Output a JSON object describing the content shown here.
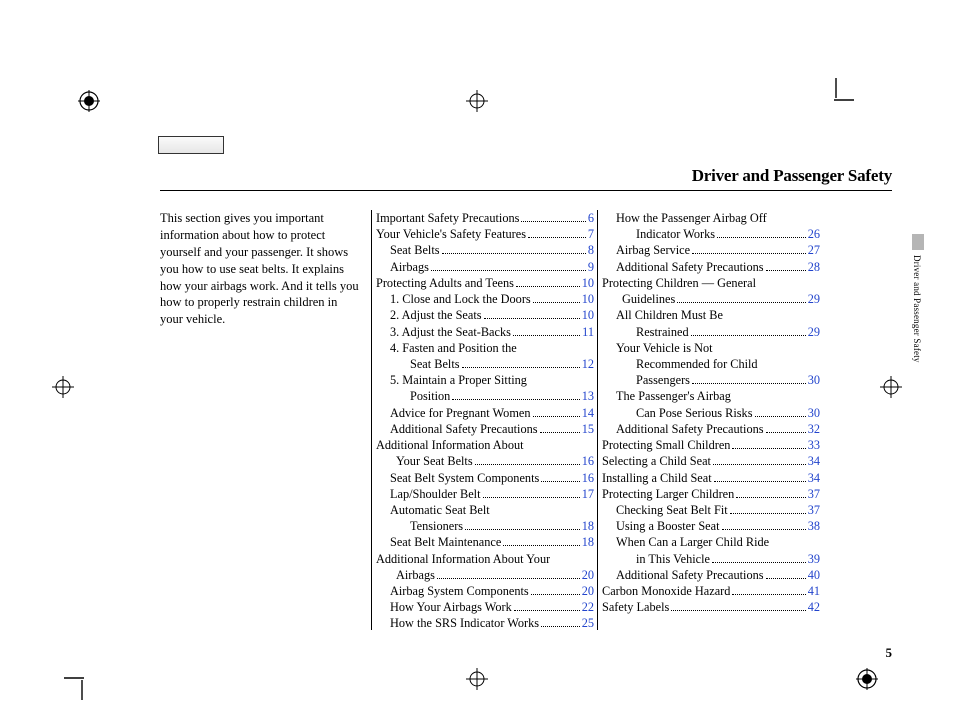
{
  "section_title": "Driver and Passenger Safety",
  "intro_text": "This section gives you important information about how to protect yourself and your passenger. It shows you how to use seat belts. It explains how your airbags work. And it tells you how to properly restrain children in your vehicle.",
  "side_label": "Driver and Passenger Safety",
  "page_number": "5",
  "link_color": "#2244cc",
  "divider_x": [
    371,
    597
  ],
  "toc_col2": [
    {
      "label": "Important Safety Precautions",
      "page": "6",
      "indent": 0
    },
    {
      "label": "Your Vehicle's Safety Features",
      "page": "7",
      "indent": 0
    },
    {
      "label": "Seat Belts",
      "page": "8",
      "indent": 1
    },
    {
      "label": "Airbags",
      "page": "9",
      "indent": 1
    },
    {
      "label": "Protecting Adults and Teens",
      "page": "10",
      "indent": 0
    },
    {
      "label": "1. Close and Lock the Doors",
      "page": "10",
      "indent": 1
    },
    {
      "label": "2. Adjust the Seats",
      "page": "10",
      "indent": 1
    },
    {
      "label": "3. Adjust the Seat-Backs",
      "page": "11",
      "indent": 1
    },
    {
      "label": "4. Fasten and Position the",
      "cont": "Seat Belts",
      "page": "12",
      "indent": 1
    },
    {
      "label": "5. Maintain a Proper Sitting",
      "cont": "Position",
      "page": "13",
      "indent": 1
    },
    {
      "label": "Advice for Pregnant Women",
      "page": "14",
      "indent": 1
    },
    {
      "label": "Additional Safety Precautions",
      "page": "15",
      "indent": 1
    },
    {
      "label": "Additional Information About",
      "cont": "Your Seat Belts",
      "page": "16",
      "indent": 0
    },
    {
      "label": "Seat Belt System Components",
      "page": "16",
      "indent": 1
    },
    {
      "label": "Lap/Shoulder Belt",
      "page": "17",
      "indent": 1
    },
    {
      "label": "Automatic Seat Belt",
      "cont": "Tensioners",
      "page": "18",
      "indent": 1
    },
    {
      "label": "Seat Belt Maintenance",
      "page": "18",
      "indent": 1
    },
    {
      "label": "Additional Information About Your",
      "cont": "Airbags",
      "page": "20",
      "indent": 0
    },
    {
      "label": "Airbag System Components",
      "page": "20",
      "indent": 1
    },
    {
      "label": "How Your Airbags Work",
      "page": "22",
      "indent": 1
    },
    {
      "label": "How the SRS Indicator Works",
      "page": "25",
      "indent": 1
    }
  ],
  "toc_col3": [
    {
      "label": "How the Passenger Airbag Off",
      "cont": "Indicator Works",
      "page": "26",
      "indent": 1
    },
    {
      "label": "Airbag Service",
      "page": "27",
      "indent": 1
    },
    {
      "label": "Additional Safety Precautions",
      "page": "28",
      "indent": 1
    },
    {
      "label": "Protecting Children — General",
      "cont": "Guidelines",
      "page": "29",
      "indent": 0
    },
    {
      "label": "All Children Must Be",
      "cont": "Restrained",
      "page": "29",
      "indent": 1
    },
    {
      "label": "Your Vehicle is Not",
      "cont": "Recommended for Child",
      "cont2": "Passengers",
      "page": "30",
      "indent": 1
    },
    {
      "label": "The Passenger's Airbag",
      "cont": "Can Pose Serious Risks",
      "page": "30",
      "indent": 1
    },
    {
      "label": "Additional Safety Precautions",
      "page": "32",
      "indent": 1
    },
    {
      "label": "Protecting Small Children",
      "page": "33",
      "indent": 0
    },
    {
      "label": "Selecting a Child Seat",
      "page": "34",
      "indent": 0
    },
    {
      "label": "Installing a Child Seat",
      "page": "34",
      "indent": 0
    },
    {
      "label": "Protecting Larger Children",
      "page": "37",
      "indent": 0
    },
    {
      "label": "Checking Seat Belt Fit",
      "page": "37",
      "indent": 1
    },
    {
      "label": "Using a Booster Seat",
      "page": "38",
      "indent": 1
    },
    {
      "label": "When Can a Larger Child Ride",
      "cont": "in This Vehicle",
      "page": "39",
      "indent": 1
    },
    {
      "label": "Additional Safety Precautions",
      "page": "40",
      "indent": 1
    },
    {
      "label": "Carbon Monoxide Hazard",
      "page": "41",
      "indent": 0
    },
    {
      "label": "Safety Labels",
      "page": "42",
      "indent": 0
    }
  ]
}
